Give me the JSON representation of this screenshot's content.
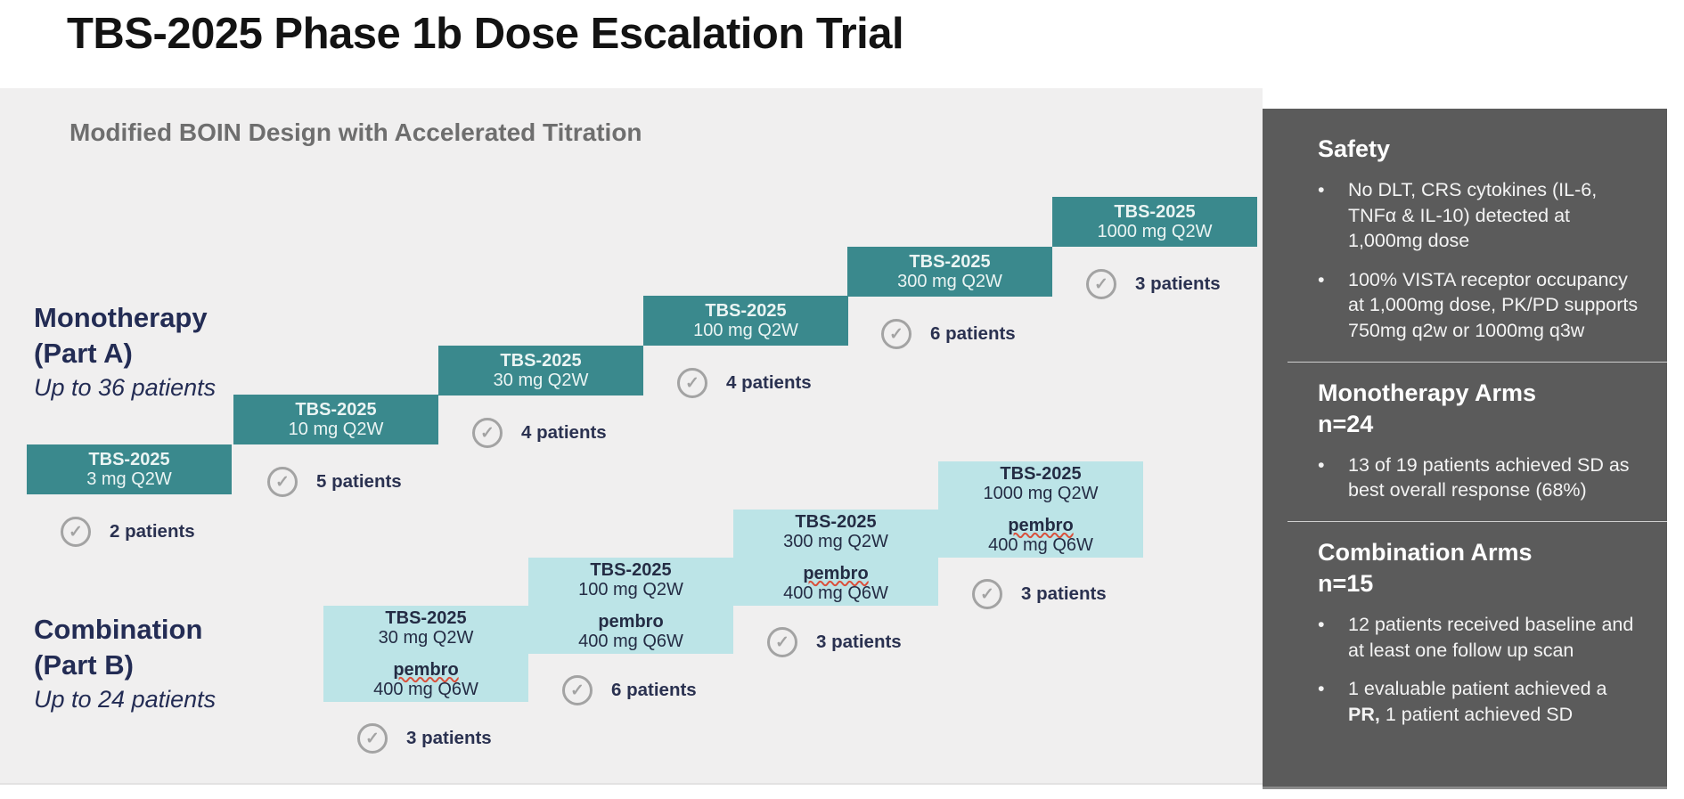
{
  "title": "TBS-2025 Phase 1b Dose Escalation Trial",
  "subtitle": "Modified BOIN Design with Accelerated Titration",
  "icons": {
    "check": "✓",
    "bullet": "•"
  },
  "colors": {
    "mono_step_teal": "#3A898D",
    "combo_step_light_teal": "#BCE4E7",
    "sidebar_gray": "#5B5B5B",
    "navy_text": "#232C54",
    "canvas_gray": "#F0EFEF"
  },
  "monotherapy": {
    "label_line1": "Monotherapy",
    "label_line2": "(Part A)",
    "label_line3": "Up to 36 patients",
    "steps": [
      {
        "drug": "TBS-2025",
        "dose": "3 mg Q2W",
        "patients": "2 patients"
      },
      {
        "drug": "TBS-2025",
        "dose": "10 mg Q2W",
        "patients": "5 patients"
      },
      {
        "drug": "TBS-2025",
        "dose": "30 mg Q2W",
        "patients": "4 patients"
      },
      {
        "drug": "TBS-2025",
        "dose": "100 mg Q2W",
        "patients": "4 patients"
      },
      {
        "drug": "TBS-2025",
        "dose": "300 mg Q2W",
        "patients": "6 patients"
      },
      {
        "drug": "TBS-2025",
        "dose": "1000 mg Q2W",
        "patients": "3 patients"
      }
    ]
  },
  "combination": {
    "label_line1": "Combination",
    "label_line2": "(Part B)",
    "label_line3": "Up to 24 patients",
    "steps": [
      {
        "drug": "TBS-2025",
        "dose": "30 mg Q2W",
        "drug2": "pembro",
        "dose2": "400 mg Q6W",
        "patients": "3 patients"
      },
      {
        "drug": "TBS-2025",
        "dose": "100 mg Q2W",
        "drug2": "pembro",
        "dose2": "400 mg Q6W",
        "patients": "6 patients"
      },
      {
        "drug": "TBS-2025",
        "dose": "300 mg Q2W",
        "drug2": "pembro",
        "dose2": "400 mg Q6W",
        "patients": "3 patients"
      },
      {
        "drug": "TBS-2025",
        "dose": "1000 mg Q2W",
        "drug2": "pembro",
        "dose2": "400 mg Q6W",
        "patients": "3 patients"
      }
    ]
  },
  "sidebar": {
    "safety": {
      "heading": "Safety",
      "bullets": [
        "No DLT, CRS  cytokines (IL-6, TNFα & IL-10) detected at 1,000mg dose",
        "100% VISTA receptor occupancy at 1,000mg dose, PK/PD supports 750mg q2w or 1000mg q3w"
      ]
    },
    "mono_arms": {
      "heading_line1": "Monotherapy Arms",
      "heading_line2": "n=24",
      "bullet1": "13 of 19 patients achieved SD as best overall response (68%)"
    },
    "combo_arms": {
      "heading_line1": "Combination Arms",
      "heading_line2": "n=15",
      "bullet1": "12  patients received baseline and at least one follow up scan",
      "bullet2_pre": "1 evaluable patient achieved a ",
      "bullet2_bold": "PR,",
      "bullet2_post": " 1 patient achieved SD"
    }
  }
}
